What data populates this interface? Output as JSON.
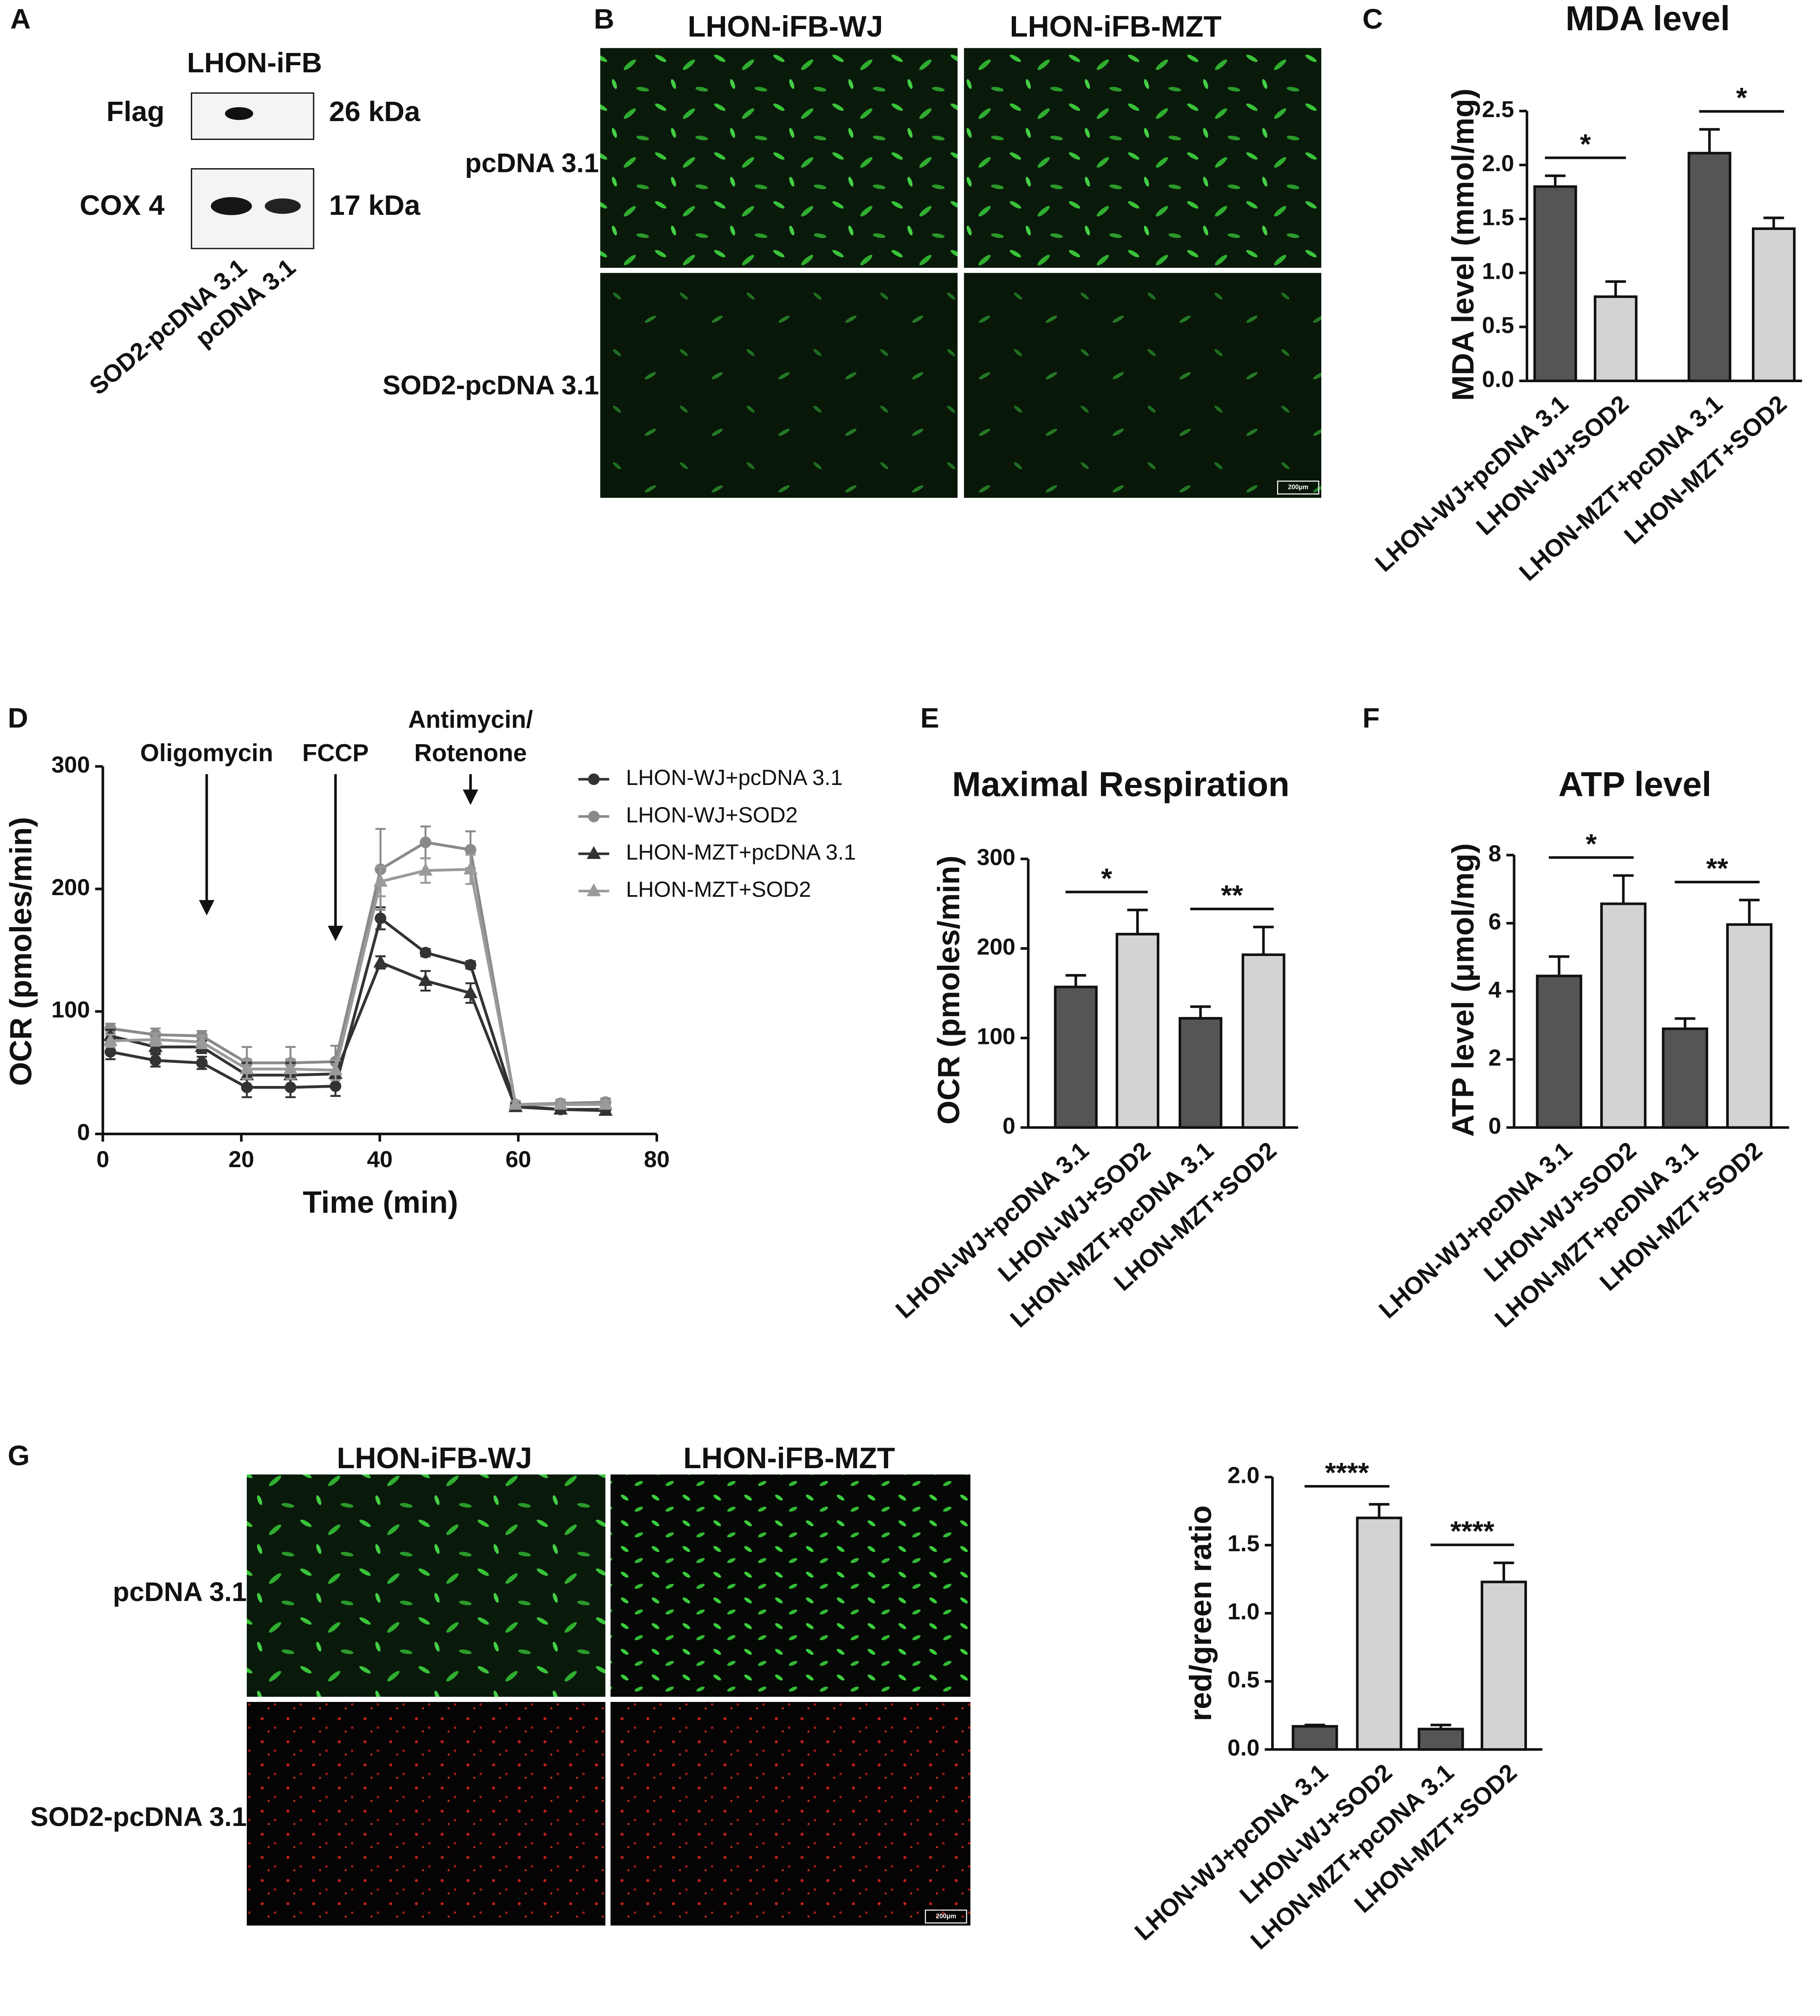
{
  "panel_labels": [
    "A",
    "B",
    "C",
    "D",
    "E",
    "F",
    "G"
  ],
  "blot": {
    "title": "LHON-iFB",
    "rows": [
      {
        "label": "Flag",
        "size": "26 kDa"
      },
      {
        "label": "COX 4",
        "size": "17 kDa"
      }
    ],
    "lanes": [
      "SOD2-pcDNA 3.1",
      "pcDNA 3.1"
    ]
  },
  "micrograph_b": {
    "columns": [
      "LHON-iFB-WJ",
      "LHON-iFB-MZT"
    ],
    "rows": [
      "pcDNA 3.1",
      "SOD2-pcDNA 3.1"
    ],
    "scale_bar": "200μm"
  },
  "micrograph_g": {
    "columns": [
      "LHON-iFB-WJ",
      "LHON-iFB-MZT"
    ],
    "rows": [
      "pcDNA 3.1",
      "SOD2-pcDNA 3.1"
    ],
    "scale_bar": "200μm"
  },
  "chart_data": [
    {
      "type": "bar",
      "title": "MDA level",
      "ylabel": "MDA level (mmol/mg)",
      "categories": [
        "LHON-WJ+pcDNA 3.1",
        "LHON-WJ+SOD2",
        "LHON-MZT+pcDNA 3.1",
        "LHON-MZT+SOD2"
      ],
      "values": [
        1.8,
        0.78,
        2.11,
        1.41
      ],
      "errors": [
        0.1,
        0.14,
        0.22,
        0.1
      ],
      "colors": [
        "#555555",
        "#d3d3d3",
        "#555555",
        "#d3d3d3"
      ],
      "ylim": [
        0,
        2.5
      ],
      "yticks": [
        {
          "value": 0,
          "label": "0.0"
        },
        0.5,
        {
          "value": 1,
          "label": "1.0"
        },
        1.5,
        {
          "value": 2,
          "label": "2.0"
        },
        2.5
      ],
      "significance": [
        {
          "pair": [
            0,
            1
          ],
          "label": "*"
        },
        {
          "pair": [
            2,
            3
          ],
          "label": "*"
        }
      ]
    },
    {
      "type": "line",
      "xlabel": "Time (min)",
      "ylabel": "OCR (pmoles/min)",
      "x": [
        1.1,
        7.6,
        14.3,
        20.8,
        27.1,
        33.6,
        40.1,
        46.6,
        53.1,
        59.6,
        66.1,
        72.6
      ],
      "xlim": [
        0,
        80
      ],
      "xticks": [
        0,
        20,
        40,
        60,
        80
      ],
      "ylim": [
        0,
        300
      ],
      "yticks": [
        0,
        100,
        200,
        300
      ],
      "series": [
        {
          "name": "LHON-WJ+pcDNA 3.1",
          "color": "#333333",
          "marker": "circle",
          "values": [
            67,
            60,
            58,
            38,
            38,
            39,
            176,
            148,
            138,
            23,
            20,
            20
          ],
          "errors": [
            6,
            5,
            5,
            8,
            8,
            8,
            9,
            3,
            3,
            3,
            3,
            3
          ]
        },
        {
          "name": "LHON-WJ+SOD2",
          "color": "#8a8a8a",
          "marker": "circle",
          "values": [
            86,
            81,
            80,
            58,
            58,
            59,
            216,
            238,
            232,
            24,
            25,
            26
          ],
          "errors": [
            4,
            5,
            4,
            13,
            13,
            13,
            33,
            13,
            15,
            3,
            3,
            3
          ]
        },
        {
          "name": "LHON-MZT+pcDNA 3.1",
          "color": "#333333",
          "marker": "triangle",
          "values": [
            80,
            71,
            71,
            48,
            48,
            49,
            140,
            125,
            115,
            22,
            20,
            19
          ],
          "errors": [
            5,
            5,
            5,
            10,
            10,
            10,
            5,
            8,
            8,
            3,
            3,
            3
          ]
        },
        {
          "name": "LHON-MZT+SOD2",
          "color": "#9a9a9a",
          "marker": "triangle",
          "values": [
            76,
            77,
            75,
            53,
            53,
            52,
            206,
            215,
            216,
            24,
            24,
            24
          ],
          "errors": [
            5,
            5,
            5,
            8,
            8,
            8,
            12,
            10,
            12,
            3,
            3,
            3
          ]
        }
      ],
      "annotations": [
        {
          "lines": [
            "Oligomycin"
          ],
          "x": 15
        },
        {
          "lines": [
            "FCCP"
          ],
          "x": 33.6
        },
        {
          "lines": [
            "Antimycin/",
            "Rotenone"
          ],
          "x": 53.1
        }
      ],
      "legend": "right"
    },
    {
      "type": "bar",
      "title": "Maximal Respiration",
      "ylabel": "OCR (pmoles/min)",
      "categories": [
        "LHON-WJ+pcDNA 3.1",
        "LHON-WJ+SOD2",
        "LHON-MZT+pcDNA 3.1",
        "LHON-MZT+SOD2"
      ],
      "values": [
        157,
        216,
        122,
        193
      ],
      "errors": [
        13,
        27,
        13,
        31
      ],
      "colors": [
        "#555555",
        "#d3d3d3",
        "#555555",
        "#d3d3d3"
      ],
      "ylim": [
        0,
        300
      ],
      "yticks": [
        0,
        100,
        200,
        300
      ],
      "significance": [
        {
          "pair": [
            0,
            1
          ],
          "label": "*"
        },
        {
          "pair": [
            2,
            3
          ],
          "label": "**"
        }
      ]
    },
    {
      "type": "bar",
      "title": "ATP level",
      "ylabel": "ATP level (μmol/mg)",
      "categories": [
        "LHON-WJ+pcDNA 3.1",
        "LHON-WJ+SOD2",
        "LHON-MZT+pcDNA 3.1",
        "LHON-MZT+SOD2"
      ],
      "values": [
        4.45,
        6.57,
        2.9,
        5.96
      ],
      "errors": [
        0.57,
        0.83,
        0.3,
        0.72
      ],
      "colors": [
        "#555555",
        "#d3d3d3",
        "#555555",
        "#d3d3d3"
      ],
      "ylim": [
        0,
        8
      ],
      "yticks": [
        0,
        2,
        4,
        6,
        8
      ],
      "significance": [
        {
          "pair": [
            0,
            1
          ],
          "label": "*"
        },
        {
          "pair": [
            2,
            3
          ],
          "label": "**"
        }
      ]
    },
    {
      "type": "bar",
      "ylabel": "red/green ratio",
      "categories": [
        "LHON-WJ+pcDNA 3.1",
        "LHON-WJ+SOD2",
        "LHON-MZT+pcDNA 3.1",
        "LHON-MZT+SOD2"
      ],
      "values": [
        0.17,
        1.7,
        0.15,
        1.23
      ],
      "errors": [
        0.01,
        0.1,
        0.03,
        0.14
      ],
      "colors": [
        "#555555",
        "#d3d3d3",
        "#555555",
        "#d3d3d3"
      ],
      "ylim": [
        0,
        2
      ],
      "yticks": [
        {
          "value": 0,
          "label": "0.0"
        },
        0.5,
        {
          "value": 1,
          "label": "1.0"
        },
        1.5,
        {
          "value": 2,
          "label": "2.0"
        }
      ],
      "significance": [
        {
          "pair": [
            0,
            1
          ],
          "label": "****"
        },
        {
          "pair": [
            2,
            3
          ],
          "label": "****"
        }
      ]
    }
  ]
}
